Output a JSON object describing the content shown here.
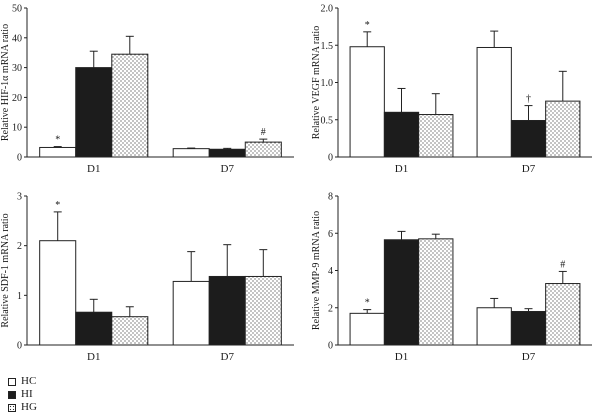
{
  "legend": {
    "items": [
      {
        "key": "hc",
        "label": "HC"
      },
      {
        "key": "hi",
        "label": "HI"
      },
      {
        "key": "hg",
        "label": "HG"
      }
    ]
  },
  "colors": {
    "hc": "#ffffff",
    "hi": "#1c1c1c",
    "hg_dot": "#333333",
    "axis": "#222222"
  },
  "chart_data": [
    {
      "type": "bar",
      "ylabel": "Relative HIF-1α mRNA ratio",
      "categories": [
        "D1",
        "D7"
      ],
      "ylim": [
        0,
        50
      ],
      "yticks": [
        "0",
        "10",
        "20",
        "30",
        "40",
        "50"
      ],
      "series": [
        {
          "name": "HC",
          "values": [
            3.2,
            2.8
          ],
          "errors": [
            0.3,
            0.2
          ]
        },
        {
          "name": "HI",
          "values": [
            30,
            2.6
          ],
          "errors": [
            5.5,
            0.3
          ]
        },
        {
          "name": "HG",
          "values": [
            34.5,
            5
          ],
          "errors": [
            6,
            1
          ]
        }
      ],
      "annotations": [
        {
          "category": 0,
          "series": 0,
          "text": "*"
        },
        {
          "category": 1,
          "series": 2,
          "text": "#"
        }
      ]
    },
    {
      "type": "bar",
      "ylabel": "Relative VEGF mRNA ratio",
      "categories": [
        "D1",
        "D7"
      ],
      "ylim": [
        0,
        2.0
      ],
      "yticks": [
        "0",
        "0.5",
        "1.0",
        "1.5",
        "2.0"
      ],
      "series": [
        {
          "name": "HC",
          "values": [
            1.48,
            1.47
          ],
          "errors": [
            0.2,
            0.22
          ]
        },
        {
          "name": "HI",
          "values": [
            0.6,
            0.49
          ],
          "errors": [
            0.32,
            0.2
          ]
        },
        {
          "name": "HG",
          "values": [
            0.57,
            0.75
          ],
          "errors": [
            0.28,
            0.4
          ]
        }
      ],
      "annotations": [
        {
          "category": 0,
          "series": 0,
          "text": "*"
        },
        {
          "category": 1,
          "series": 1,
          "text": "†"
        }
      ]
    },
    {
      "type": "bar",
      "ylabel": "Relative SDF-1 mRNA ratio",
      "categories": [
        "D1",
        "D7"
      ],
      "ylim": [
        0,
        3
      ],
      "yticks": [
        "0",
        "1",
        "2",
        "3"
      ],
      "series": [
        {
          "name": "HC",
          "values": [
            2.1,
            1.28
          ],
          "errors": [
            0.58,
            0.6
          ]
        },
        {
          "name": "HI",
          "values": [
            0.66,
            1.38
          ],
          "errors": [
            0.26,
            0.64
          ]
        },
        {
          "name": "HG",
          "values": [
            0.57,
            1.38
          ],
          "errors": [
            0.2,
            0.54
          ]
        }
      ],
      "annotations": [
        {
          "category": 0,
          "series": 0,
          "text": "*"
        }
      ]
    },
    {
      "type": "bar",
      "ylabel": "Relative MMP-9 mRNA ratio",
      "categories": [
        "D1",
        "D7"
      ],
      "ylim": [
        0,
        8
      ],
      "yticks": [
        "0",
        "2",
        "4",
        "6",
        "8"
      ],
      "series": [
        {
          "name": "HC",
          "values": [
            1.7,
            2.0
          ],
          "errors": [
            0.2,
            0.5
          ]
        },
        {
          "name": "HI",
          "values": [
            5.65,
            1.8
          ],
          "errors": [
            0.45,
            0.15
          ]
        },
        {
          "name": "HG",
          "values": [
            5.7,
            3.3
          ],
          "errors": [
            0.25,
            0.65
          ]
        }
      ],
      "annotations": [
        {
          "category": 0,
          "series": 0,
          "text": "*"
        },
        {
          "category": 1,
          "series": 2,
          "text": "#"
        }
      ]
    }
  ]
}
